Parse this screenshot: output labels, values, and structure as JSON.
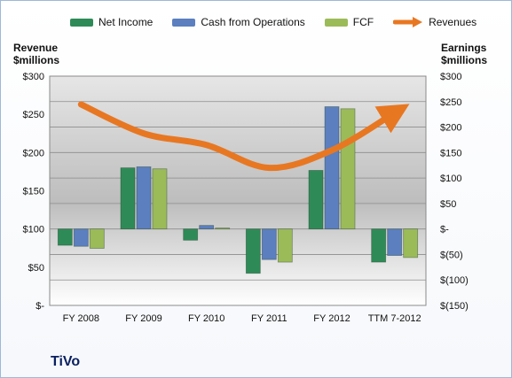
{
  "chart_data": {
    "type": "bar",
    "categories": [
      "FY 2008",
      "FY 2009",
      "FY 2010",
      "FY 2011",
      "FY 2012",
      "TTM 7-2012"
    ],
    "series": [
      {
        "name": "Net Income",
        "axis": "right",
        "color": "#2e8b57",
        "values": [
          -32,
          120,
          -22,
          -87,
          115,
          -65
        ]
      },
      {
        "name": "Cash from Operations",
        "axis": "right",
        "color": "#5b7fbf",
        "values": [
          -34,
          122,
          7,
          -60,
          240,
          -52
        ]
      },
      {
        "name": "FCF",
        "axis": "right",
        "color": "#9bbb59",
        "values": [
          -38,
          118,
          2,
          -65,
          236,
          -56
        ]
      }
    ],
    "revenue_line": {
      "name": "Revenues",
      "axis": "left",
      "color": "#e87722",
      "values": [
        263,
        225,
        210,
        180,
        203,
        252
      ]
    },
    "left_axis": {
      "title_line1": "Revenue",
      "title_line2": "$millions",
      "ylim": [
        0,
        300
      ],
      "ticks": [
        300,
        250,
        200,
        150,
        100,
        50,
        0
      ],
      "tick_labels": [
        "$300",
        "$250",
        "$200",
        "$150",
        "$100",
        "$50",
        "$-"
      ]
    },
    "right_axis": {
      "title_line1": "Earnings",
      "title_line2": "$millions",
      "ylim": [
        -150,
        300
      ],
      "ticks": [
        300,
        250,
        200,
        150,
        100,
        50,
        0,
        -50,
        -100,
        -150
      ],
      "tick_labels": [
        "$300",
        "$250",
        "$200",
        "$150",
        "$100",
        "$50",
        "$-",
        "$(50)",
        "$(100)",
        "$(150)"
      ]
    },
    "grid": true,
    "legend_position": "top"
  },
  "legend": {
    "net_income": "Net Income",
    "cfo": "Cash from Operations",
    "fcf": "FCF",
    "revenues": "Revenues"
  },
  "company": "TiVo"
}
